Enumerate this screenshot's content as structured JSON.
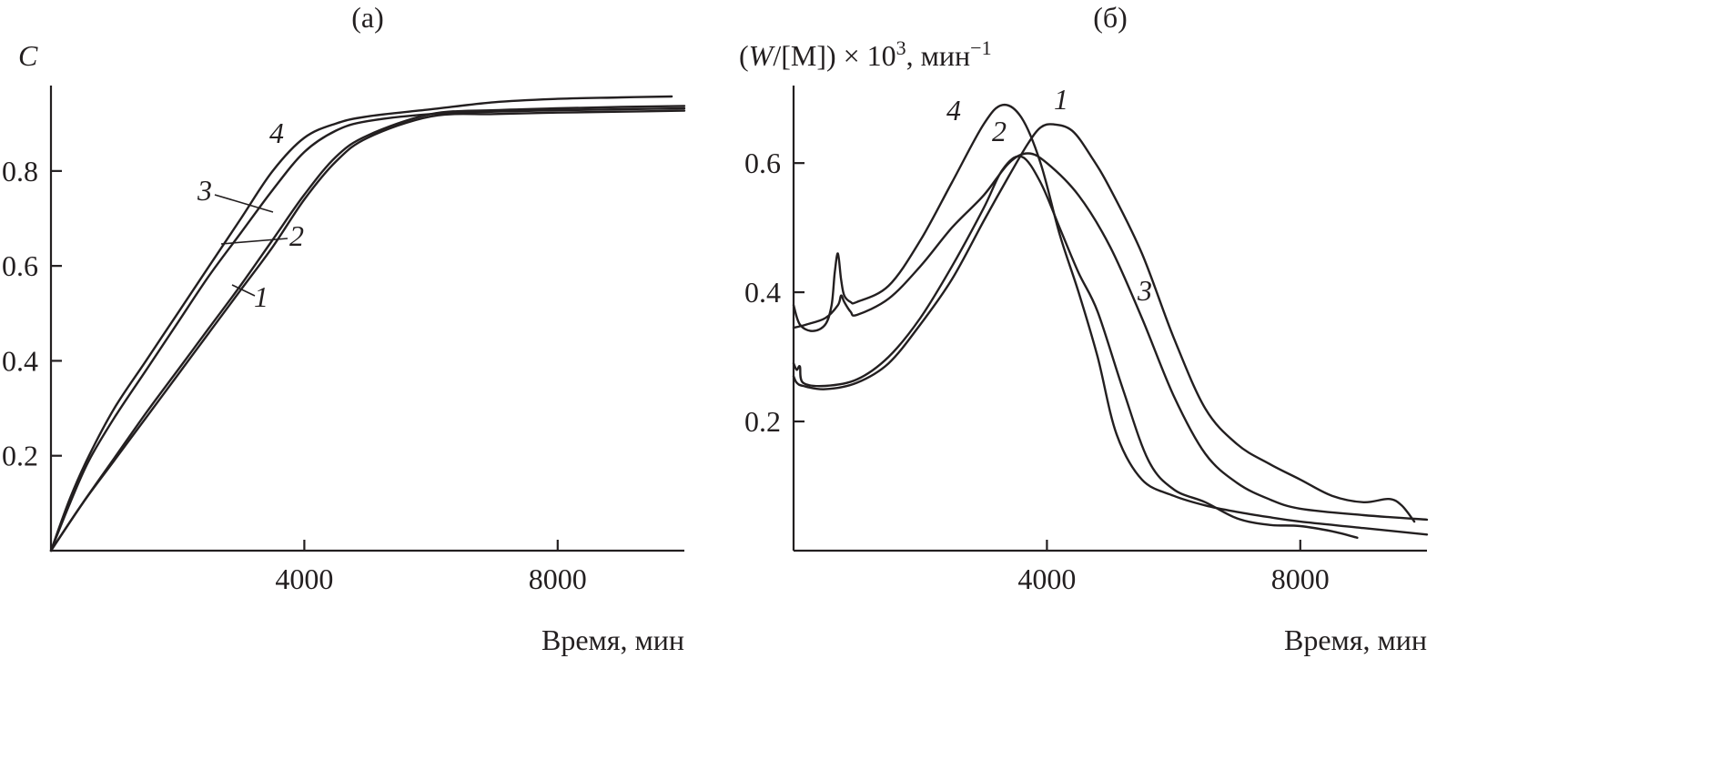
{
  "chart_data": [
    {
      "type": "line",
      "title": "(а)",
      "ylabel": "C",
      "xlabel": "Время, мин",
      "xlim": [
        0,
        10000
      ],
      "ylim": [
        0,
        0.98
      ],
      "xticks": [
        4000,
        8000
      ],
      "xtick_labels": [
        "4000",
        "8000"
      ],
      "yticks": [
        0.2,
        0.4,
        0.6,
        0.8
      ],
      "ytick_labels": [
        "0.2",
        "0.4",
        "0.6",
        "0.8"
      ],
      "series": [
        {
          "name": "1",
          "x": [
            0,
            500,
            1000,
            1500,
            2000,
            2500,
            3000,
            3500,
            4000,
            4500,
            5000,
            6000,
            7000,
            8000,
            9000,
            10000
          ],
          "y": [
            0,
            0.1,
            0.19,
            0.28,
            0.37,
            0.46,
            0.55,
            0.64,
            0.74,
            0.82,
            0.87,
            0.915,
            0.92,
            0.923,
            0.925,
            0.927
          ]
        },
        {
          "name": "2",
          "x": [
            0,
            500,
            1000,
            1500,
            2000,
            2500,
            3000,
            3500,
            4000,
            4500,
            5000,
            6000,
            7000,
            8000,
            9000,
            10000
          ],
          "y": [
            0,
            0.1,
            0.195,
            0.29,
            0.38,
            0.47,
            0.56,
            0.655,
            0.75,
            0.83,
            0.875,
            0.92,
            0.928,
            0.932,
            0.935,
            0.937
          ]
        },
        {
          "name": "3",
          "x": [
            0,
            300,
            600,
            1000,
            1500,
            2000,
            2500,
            3000,
            3500,
            4000,
            4500,
            5000,
            6000,
            7000,
            8000,
            9000,
            10000
          ],
          "y": [
            0,
            0.1,
            0.19,
            0.28,
            0.38,
            0.48,
            0.58,
            0.67,
            0.76,
            0.84,
            0.885,
            0.905,
            0.92,
            0.925,
            0.928,
            0.93,
            0.932
          ]
        },
        {
          "name": "4",
          "x": [
            0,
            300,
            600,
            1000,
            1500,
            2000,
            2500,
            3000,
            3500,
            4000,
            4500,
            5000,
            6000,
            7000,
            8000,
            9000,
            9800
          ],
          "y": [
            0,
            0.11,
            0.2,
            0.3,
            0.4,
            0.5,
            0.6,
            0.7,
            0.8,
            0.87,
            0.9,
            0.915,
            0.93,
            0.945,
            0.952,
            0.955,
            0.957
          ]
        }
      ]
    },
    {
      "type": "line",
      "title": "(б)",
      "ylabel": "(W/[M]) × 10³, мин⁻¹",
      "xlabel": "Время, мин",
      "xlim": [
        0,
        10000
      ],
      "ylim": [
        0,
        0.72
      ],
      "xticks": [
        4000,
        8000
      ],
      "xtick_labels": [
        "4000",
        "8000"
      ],
      "yticks": [
        0.2,
        0.4,
        0.6
      ],
      "ytick_labels": [
        "0.2",
        "0.4",
        "0.6"
      ],
      "series": [
        {
          "name": "1",
          "x": [
            0,
            50,
            150,
            500,
            1000,
            1500,
            2000,
            2500,
            3000,
            3400,
            3700,
            3900,
            4100,
            4400,
            4700,
            5000,
            5500,
            6000,
            6500,
            7000,
            7500,
            8000,
            8500,
            9000,
            9400,
            9600,
            9800
          ],
          "y": [
            0.27,
            0.26,
            0.255,
            0.25,
            0.26,
            0.29,
            0.35,
            0.42,
            0.51,
            0.58,
            0.63,
            0.655,
            0.66,
            0.65,
            0.61,
            0.56,
            0.46,
            0.33,
            0.22,
            0.165,
            0.135,
            0.11,
            0.085,
            0.075,
            0.08,
            0.07,
            0.045
          ]
        },
        {
          "name": "2",
          "x": [
            0,
            50,
            100,
            150,
            500,
            1000,
            1500,
            2000,
            2500,
            3000,
            3300,
            3600,
            3900,
            4200,
            4500,
            4800,
            5200,
            5600,
            6000,
            6500,
            7000,
            7500,
            8000,
            8500,
            8900
          ],
          "y": [
            0.29,
            0.28,
            0.285,
            0.26,
            0.255,
            0.265,
            0.3,
            0.36,
            0.44,
            0.53,
            0.59,
            0.61,
            0.57,
            0.5,
            0.43,
            0.37,
            0.25,
            0.14,
            0.095,
            0.075,
            0.05,
            0.04,
            0.038,
            0.03,
            0.02
          ]
        },
        {
          "name": "3",
          "x": [
            0,
            200,
            500,
            700,
            750,
            800,
            900,
            1000,
            1500,
            2000,
            2500,
            3000,
            3400,
            3700,
            4000,
            4500,
            5000,
            5500,
            6000,
            6500,
            7000,
            7500,
            8000,
            9000,
            10000
          ],
          "y": [
            0.345,
            0.35,
            0.36,
            0.38,
            0.395,
            0.385,
            0.37,
            0.365,
            0.39,
            0.44,
            0.5,
            0.55,
            0.6,
            0.615,
            0.6,
            0.55,
            0.47,
            0.36,
            0.24,
            0.15,
            0.105,
            0.08,
            0.065,
            0.055,
            0.048
          ]
        },
        {
          "name": "4",
          "x": [
            0,
            100,
            300,
            500,
            600,
            650,
            700,
            750,
            800,
            900,
            1000,
            1500,
            2000,
            2500,
            3000,
            3300,
            3600,
            3900,
            4200,
            4500,
            4800,
            5100,
            5500,
            6000,
            6500,
            7000,
            7500,
            8000,
            9000,
            10000
          ],
          "y": [
            0.38,
            0.35,
            0.34,
            0.35,
            0.38,
            0.43,
            0.46,
            0.42,
            0.395,
            0.385,
            0.385,
            0.41,
            0.48,
            0.57,
            0.66,
            0.69,
            0.67,
            0.6,
            0.49,
            0.4,
            0.3,
            0.18,
            0.11,
            0.085,
            0.07,
            0.06,
            0.052,
            0.045,
            0.035,
            0.025
          ]
        }
      ]
    }
  ]
}
